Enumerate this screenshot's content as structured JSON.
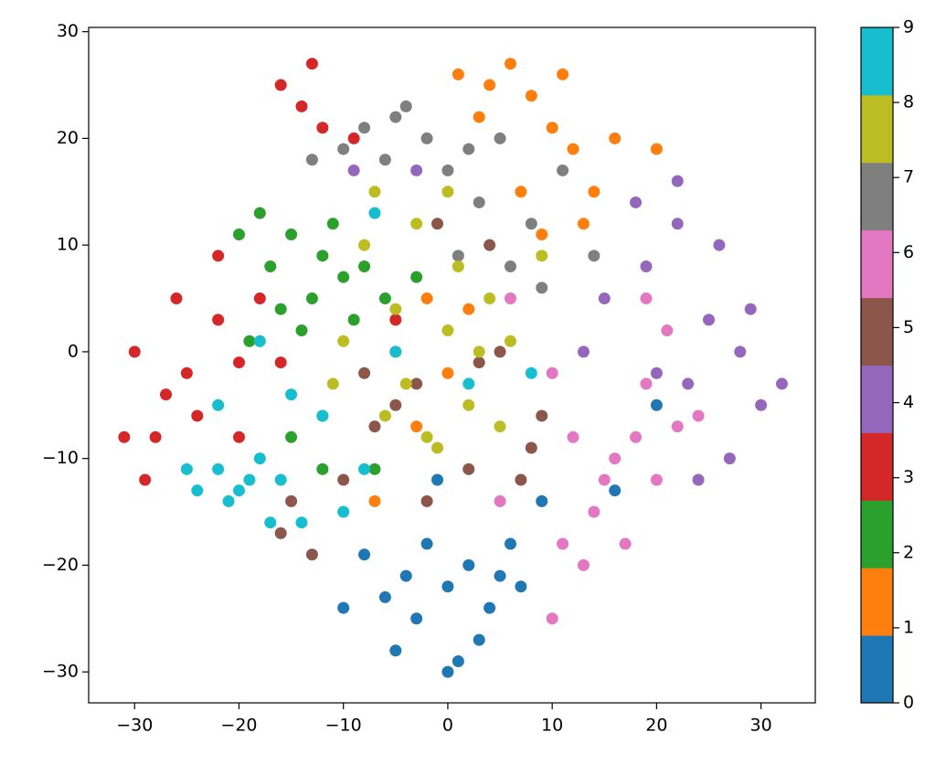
{
  "chart_data": {
    "type": "scatter",
    "xlim": [
      -34.4,
      35.2
    ],
    "ylim": [
      -32.9,
      30.4
    ],
    "xticks": [
      {
        "value": -30,
        "label": "−30"
      },
      {
        "value": -20,
        "label": "−20"
      },
      {
        "value": -10,
        "label": "−10"
      },
      0,
      10,
      20,
      30
    ],
    "yticks": [
      {
        "value": -30,
        "label": "−30"
      },
      {
        "value": -20,
        "label": "−20"
      },
      {
        "value": -10,
        "label": "−10"
      },
      0,
      10,
      20,
      30
    ],
    "colorbar": {
      "lim": [
        0,
        9
      ],
      "ticks": [
        0,
        1,
        2,
        3,
        4,
        5,
        6,
        7,
        8,
        9
      ],
      "colors": [
        "#1f77b4",
        "#ff7f0e",
        "#2ca02c",
        "#d62728",
        "#9467bd",
        "#8c564b",
        "#e377c2",
        "#7f7f7f",
        "#bcbd22",
        "#17becf"
      ]
    },
    "series": [
      {
        "color": "#1f77b4",
        "x": [
          0,
          -3,
          2,
          -5,
          4,
          6,
          -8,
          1,
          -2,
          3,
          7,
          -6,
          0,
          -10,
          9,
          -1,
          16,
          20,
          5,
          -4
        ],
        "values": [
          -22,
          -25,
          -20,
          -28,
          -24,
          -18,
          -19,
          -29,
          -18,
          -27,
          -22,
          -23,
          -30,
          -24,
          -14,
          -12,
          -13,
          -5,
          -21,
          -21
        ]
      },
      {
        "color": "#ff7f0e",
        "x": [
          1,
          4,
          6,
          8,
          10,
          12,
          3,
          11,
          14,
          16,
          20,
          7,
          13,
          -2,
          -5,
          0,
          -3,
          2,
          9,
          -7
        ],
        "values": [
          26,
          25,
          27,
          24,
          21,
          19,
          22,
          26,
          15,
          20,
          19,
          15,
          12,
          5,
          0,
          -2,
          -7,
          4,
          11,
          -14
        ]
      },
      {
        "color": "#2ca02c",
        "x": [
          -15,
          -12,
          -10,
          -18,
          -13,
          -8,
          -16,
          -20,
          -11,
          -6,
          -14,
          -9,
          -3,
          -17,
          -15,
          -12,
          -7,
          -19
        ],
        "values": [
          11,
          9,
          7,
          13,
          5,
          8,
          4,
          11,
          12,
          5,
          2,
          3,
          7,
          8,
          -8,
          -11,
          -11,
          1
        ]
      },
      {
        "color": "#d62728",
        "x": [
          -30,
          -27,
          -25,
          -22,
          -28,
          -24,
          -20,
          -18,
          -22,
          -26,
          -14,
          -13,
          -16,
          -12,
          -31,
          -29,
          -20,
          -16,
          -9,
          -5
        ],
        "values": [
          0,
          -4,
          -2,
          3,
          -8,
          -6,
          -1,
          5,
          9,
          5,
          23,
          27,
          25,
          21,
          -8,
          -12,
          -8,
          -1,
          20,
          3
        ]
      },
      {
        "color": "#9467bd",
        "x": [
          25,
          28,
          23,
          30,
          27,
          22,
          19,
          15,
          20,
          32,
          26,
          24,
          18,
          29,
          22,
          13,
          -9,
          -3
        ],
        "values": [
          3,
          0,
          -3,
          -5,
          -10,
          12,
          8,
          5,
          -2,
          -3,
          10,
          -12,
          14,
          4,
          16,
          0,
          17,
          17
        ]
      },
      {
        "color": "#8c564b",
        "x": [
          -12,
          -8,
          -5,
          -15,
          -10,
          -3,
          3,
          5,
          -16,
          -13,
          -2,
          8,
          2,
          4,
          9,
          7,
          -7,
          -1
        ],
        "values": [
          -6,
          -2,
          -5,
          -14,
          -12,
          -3,
          -1,
          0,
          -17,
          -19,
          -14,
          -9,
          -11,
          10,
          -6,
          -12,
          -7,
          12
        ]
      },
      {
        "color": "#e377c2",
        "x": [
          16,
          14,
          18,
          20,
          13,
          17,
          12,
          22,
          19,
          15,
          24,
          11,
          21,
          19,
          10,
          5,
          10,
          6
        ],
        "values": [
          -10,
          -15,
          -8,
          -12,
          -20,
          -18,
          -8,
          -7,
          -3,
          -12,
          -6,
          -18,
          2,
          5,
          -25,
          -14,
          -2,
          5
        ]
      },
      {
        "color": "#7f7f7f",
        "x": [
          -8,
          -5,
          -2,
          0,
          2,
          5,
          -6,
          -4,
          3,
          8,
          1,
          -10,
          6,
          11,
          14,
          -13,
          9
        ],
        "values": [
          21,
          22,
          20,
          17,
          19,
          20,
          18,
          23,
          14,
          12,
          9,
          19,
          8,
          17,
          9,
          18,
          6
        ]
      },
      {
        "color": "#bcbd22",
        "x": [
          -7,
          -3,
          1,
          -5,
          0,
          3,
          -4,
          -6,
          -2,
          2,
          4,
          6,
          -1,
          5,
          -11,
          -10,
          9,
          -8,
          0
        ],
        "values": [
          15,
          12,
          8,
          4,
          2,
          0,
          -3,
          -6,
          -8,
          -5,
          5,
          1,
          -9,
          -7,
          -3,
          1,
          9,
          10,
          15
        ]
      },
      {
        "color": "#17becf",
        "x": [
          -22,
          -20,
          -18,
          -24,
          -21,
          -17,
          -14,
          -19,
          -25,
          -16,
          -10,
          -8,
          -12,
          -15,
          -18,
          -7,
          -5,
          2,
          -22,
          8
        ],
        "values": [
          -11,
          -13,
          -10,
          -13,
          -14,
          -16,
          -16,
          -12,
          -11,
          -12,
          -15,
          -11,
          -6,
          -4,
          1,
          13,
          0,
          -3,
          -5,
          -2
        ]
      }
    ]
  }
}
